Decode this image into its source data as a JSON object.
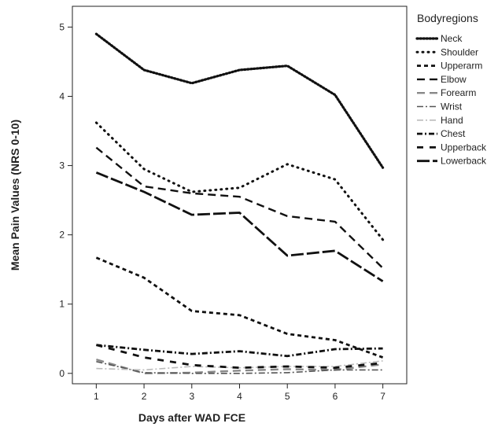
{
  "chart_data": {
    "type": "line",
    "title": "",
    "xlabel": "Days after WAD FCE",
    "ylabel": "Mean Pain Values (NRS 0-10)",
    "x": [
      1,
      2,
      3,
      4,
      5,
      6,
      7
    ],
    "xlim": [
      0.5,
      7.5
    ],
    "ylim": [
      -0.15,
      5.3
    ],
    "yticks": [
      0,
      1,
      2,
      3,
      4,
      5
    ],
    "grid": false,
    "legend_title": "Bodyregions",
    "legend_position": "right",
    "series": [
      {
        "name": "Neck",
        "values": [
          4.9,
          4.38,
          4.19,
          4.38,
          4.44,
          4.02,
          2.97
        ],
        "color": "#111111",
        "dash": "dot-heavy"
      },
      {
        "name": "Shoulder",
        "values": [
          3.62,
          2.95,
          2.62,
          2.68,
          3.02,
          2.8,
          1.93
        ],
        "color": "#111111",
        "dash": "dot-sparse"
      },
      {
        "name": "Upperarm",
        "values": [
          1.67,
          1.38,
          0.9,
          0.84,
          0.57,
          0.48,
          0.23
        ],
        "color": "#111111",
        "dash": "short-dash"
      },
      {
        "name": "Elbow",
        "values": [
          3.26,
          2.7,
          2.6,
          2.55,
          2.27,
          2.19,
          1.52
        ],
        "color": "#111111",
        "dash": "long-dash"
      },
      {
        "name": "Forearm",
        "values": [
          0.2,
          0.0,
          0.01,
          0.04,
          0.06,
          0.05,
          0.13
        ],
        "color": "#888888",
        "dash": "long-dash"
      },
      {
        "name": "Wrist",
        "values": [
          0.17,
          0.01,
          0.0,
          0.0,
          0.01,
          0.05,
          0.05
        ],
        "color": "#555555",
        "dash": "dash-dot"
      },
      {
        "name": "Hand",
        "values": [
          0.07,
          0.05,
          0.1,
          0.08,
          0.1,
          0.1,
          0.18
        ],
        "color": "#bbbbbb",
        "dash": "dash-dot"
      },
      {
        "name": "Chest",
        "values": [
          0.41,
          0.34,
          0.28,
          0.32,
          0.25,
          0.35,
          0.36
        ],
        "color": "#111111",
        "dash": "dash-dot-bold"
      },
      {
        "name": "Upperback",
        "values": [
          0.41,
          0.23,
          0.12,
          0.08,
          0.1,
          0.08,
          0.15
        ],
        "color": "#111111",
        "dash": "dash-gap"
      },
      {
        "name": "Lowerback",
        "values": [
          2.9,
          2.62,
          2.29,
          2.32,
          1.7,
          1.77,
          1.33
        ],
        "color": "#111111",
        "dash": "long-bold"
      }
    ]
  }
}
